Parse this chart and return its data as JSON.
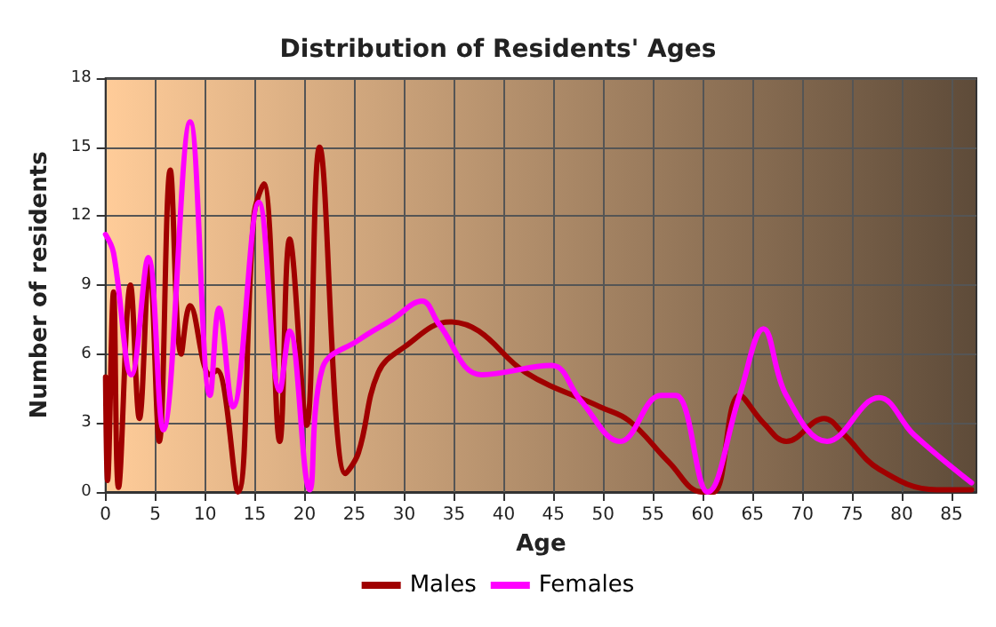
{
  "chart_data": {
    "type": "line",
    "title": "Distribution of Residents' Ages",
    "xlabel": "Age",
    "ylabel": "Number of residents",
    "xlim": [
      0,
      87.5
    ],
    "xticks": [
      0,
      5,
      10,
      15,
      20,
      25,
      30,
      35,
      40,
      45,
      50,
      55,
      60,
      65,
      70,
      75,
      80,
      85
    ],
    "ylim": [
      0,
      18
    ],
    "yticks": [
      0,
      3,
      6,
      9,
      12,
      15,
      18
    ],
    "grid": true,
    "legend": "bottom",
    "marker": "none",
    "line_style": "solid",
    "series": [
      {
        "name": "Males",
        "color": "#a00000",
        "x": [
          0,
          0.2,
          0.8,
          1.3,
          2.5,
          3.4,
          4.4,
          5.4,
          6.5,
          7.6,
          8.5,
          10.5,
          11.2,
          13.3,
          14.9,
          15.9,
          17.5,
          18.5,
          20.2,
          21.5,
          24.1,
          25.4,
          27.4,
          30,
          34.6,
          37.5,
          42.2,
          49.7,
          52.6,
          56.6,
          59.9,
          61.1,
          63.7,
          66.1,
          68.4,
          72.2,
          74.2,
          77.7,
          83.5,
          87
        ],
        "values": [
          5,
          0.5,
          8.7,
          0.2,
          9,
          3.2,
          10,
          2.2,
          14,
          6,
          8.1,
          5.1,
          5.3,
          0,
          12,
          13.4,
          2.2,
          11,
          2.9,
          15,
          0.8,
          1.7,
          5.2,
          6.3,
          7.4,
          7,
          5.2,
          3.7,
          3.1,
          1.3,
          0,
          0,
          4.2,
          3,
          2.2,
          3.2,
          2.5,
          1,
          0.1,
          0.1
        ]
      },
      {
        "name": "Females",
        "color": "#ff00ff",
        "x": [
          0,
          0.8,
          2.6,
          4.3,
          5.8,
          8.5,
          10.5,
          11.4,
          12.8,
          15.4,
          17.5,
          18.5,
          20.5,
          21.8,
          25.4,
          28.8,
          31.8,
          33.5,
          37.8,
          44.8,
          47.7,
          51.7,
          55.8,
          57.3,
          60.5,
          63.7,
          66.1,
          68.4,
          72.5,
          77.7,
          81.2,
          87
        ],
        "values": [
          11.2,
          10.4,
          5.1,
          10.2,
          2.7,
          16.1,
          4.2,
          8,
          3.7,
          12.6,
          4.4,
          7,
          0.1,
          5.4,
          6.6,
          7.5,
          8.3,
          7.3,
          5.1,
          5.5,
          4,
          2.2,
          4.2,
          4.2,
          0,
          4.2,
          7.1,
          4.2,
          2.2,
          4.1,
          2.5,
          0.4
        ]
      }
    ]
  }
}
